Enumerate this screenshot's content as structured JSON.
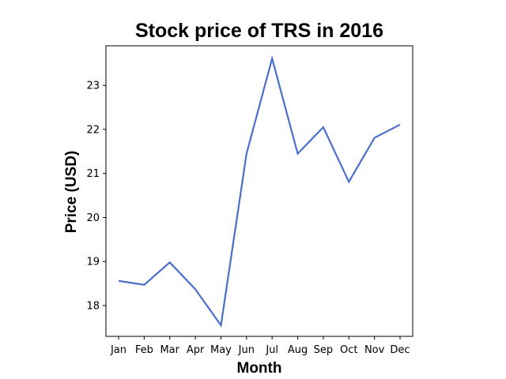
{
  "chart_data": {
    "type": "line",
    "title": "Stock price of TRS in 2016",
    "xlabel": "Month",
    "ylabel": "Price (USD)",
    "categories": [
      "Jan",
      "Feb",
      "Mar",
      "Apr",
      "May",
      "Jun",
      "Jul",
      "Aug",
      "Sep",
      "Oct",
      "Nov",
      "Dec"
    ],
    "yticks": [
      18,
      19,
      20,
      21,
      22,
      23
    ],
    "ylim": [
      17.3,
      23.9
    ],
    "grid": false,
    "legend": "none",
    "series": [
      {
        "color": "#4c6ecb",
        "values": [
          18.56,
          18.47,
          18.98,
          18.37,
          17.55,
          21.45,
          23.61,
          21.45,
          22.05,
          20.81,
          21.81,
          22.11
        ]
      }
    ]
  }
}
